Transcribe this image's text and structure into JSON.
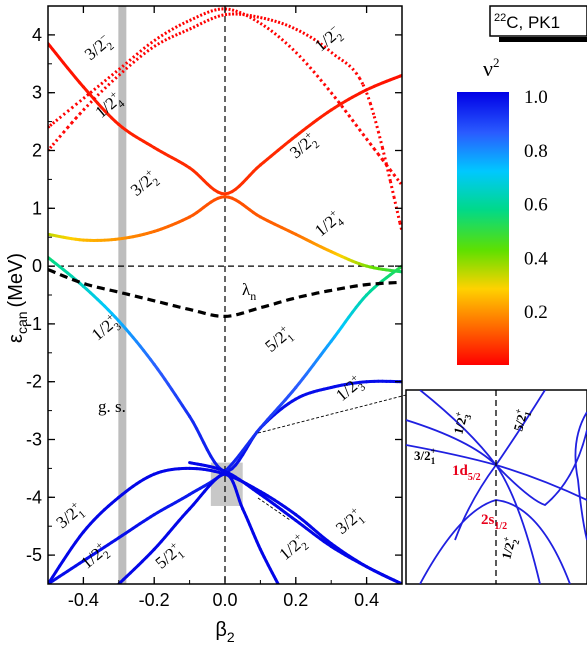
{
  "chart_data": {
    "type": "line",
    "tag": "22C, PK1",
    "tag_sup": "22",
    "tag_rest": "C, PK1",
    "xlabel": "β",
    "xlabel_sub": "2",
    "ylabel": "ε",
    "ylabel_sub": "can",
    "ylabel_unit": "(MeV)",
    "xlim": [
      -0.5,
      0.5
    ],
    "ylim": [
      -5.5,
      4.5
    ],
    "xticks": [
      -0.4,
      -0.2,
      0.0,
      0.2,
      0.4
    ],
    "xtick_labels": [
      "-0.4",
      "-0.2",
      "0.0",
      "0.2",
      "0.4"
    ],
    "yticks": [
      -5,
      -4,
      -3,
      -2,
      -1,
      0,
      1,
      2,
      3,
      4
    ],
    "ytick_labels": [
      "-5",
      "-4",
      "-3",
      "-2",
      "-1",
      "0",
      "1",
      "2",
      "3",
      "4"
    ],
    "gs_label": "g. s.",
    "gs_beta": -0.29,
    "fermi_label": "λ",
    "fermi_sub": "n",
    "colorbar": {
      "title": "ν",
      "title_sup": "2",
      "ticks": [
        1.0,
        0.8,
        0.6,
        0.4,
        0.2
      ],
      "tick_labels": [
        "1.0",
        "0.8",
        "0.6",
        "0.4",
        "0.2"
      ],
      "colors": [
        "#ff0000",
        "#ff6a00",
        "#ffd200",
        "#5fe000",
        "#00d98a",
        "#00c8ff",
        "#2a5cff",
        "#0000e6"
      ]
    },
    "fermi_level": {
      "x": [
        -0.5,
        -0.4,
        -0.3,
        -0.2,
        -0.1,
        0.0,
        0.1,
        0.2,
        0.3,
        0.4,
        0.5
      ],
      "y": [
        -0.06,
        -0.3,
        -0.45,
        -0.6,
        -0.75,
        -0.87,
        -0.72,
        -0.55,
        -0.42,
        -0.32,
        -0.28
      ]
    },
    "series": [
      {
        "name": "1/2+ (upper)",
        "x": [
          -0.5,
          -0.4,
          -0.3,
          -0.2,
          -0.1,
          0.0,
          0.1,
          0.2,
          0.3,
          0.4,
          0.5
        ],
        "y": [
          3.85,
          3.1,
          2.45,
          2.05,
          1.7,
          1.25,
          1.75,
          2.25,
          2.7,
          3.05,
          3.3
        ],
        "v2": [
          0.02,
          0.03,
          0.04,
          0.05,
          0.06,
          0.07,
          0.06,
          0.05,
          0.04,
          0.03,
          0.02
        ]
      },
      {
        "name": "3/2+ (middle)",
        "x": [
          -0.5,
          -0.4,
          -0.3,
          -0.2,
          -0.1,
          0.0,
          0.1,
          0.2,
          0.3,
          0.4,
          0.5
        ],
        "y": [
          0.55,
          0.45,
          0.47,
          0.6,
          0.85,
          1.2,
          0.85,
          0.55,
          0.25,
          0.0,
          -0.1
        ],
        "v2": [
          0.35,
          0.25,
          0.2,
          0.15,
          0.12,
          0.1,
          0.12,
          0.15,
          0.25,
          0.4,
          0.55
        ]
      },
      {
        "name": "3/2- (dotted)",
        "x": [
          -0.5,
          -0.4,
          -0.3,
          -0.2,
          -0.1,
          0.0,
          0.1,
          0.2,
          0.3,
          0.4,
          0.5
        ],
        "y": [
          2.0,
          2.7,
          3.3,
          3.8,
          4.1,
          4.35,
          4.3,
          4.1,
          3.7,
          3.0,
          0.6
        ],
        "v2": [
          0.0,
          0.0,
          0.0,
          0.0,
          0.0,
          0.0,
          0.0,
          0.0,
          0.0,
          0.0,
          0.0
        ]
      },
      {
        "name": "1/2- (dotted)",
        "x": [
          -0.5,
          -0.4,
          -0.3,
          -0.2,
          -0.1,
          0.0,
          0.1,
          0.2,
          0.3,
          0.4,
          0.5
        ],
        "y": [
          2.4,
          2.9,
          3.4,
          3.9,
          4.25,
          4.45,
          4.2,
          3.7,
          3.0,
          2.2,
          1.4
        ],
        "v2": [
          0.0,
          0.0,
          0.0,
          0.0,
          0.0,
          0.0,
          0.0,
          0.0,
          0.0,
          0.0,
          0.0
        ]
      },
      {
        "name": "1/2+ (lower)",
        "x": [
          -0.5,
          -0.4,
          -0.3,
          -0.2,
          -0.1,
          0.0,
          0.1,
          0.2,
          0.3,
          0.4,
          0.5
        ],
        "y": [
          0.15,
          -0.35,
          -0.95,
          -1.7,
          -2.6,
          -3.55,
          -2.8,
          -2.3,
          -2.1,
          -2.0,
          -2.0
        ],
        "v2": [
          0.55,
          0.65,
          0.75,
          0.85,
          0.93,
          0.97,
          0.98,
          0.98,
          0.98,
          0.98,
          0.98
        ]
      },
      {
        "name": "5/2+ (rising)",
        "x": [
          -0.5,
          -0.4,
          -0.3,
          -0.2,
          -0.1,
          0.0,
          0.1,
          0.2,
          0.3,
          0.4,
          0.5
        ],
        "y": [
          -5.5,
          -5.1,
          -4.7,
          -4.3,
          -3.95,
          -3.55,
          -2.8,
          -2.1,
          -1.3,
          -0.5,
          0.0
        ],
        "v2": [
          0.98,
          0.98,
          0.98,
          0.97,
          0.96,
          0.95,
          0.92,
          0.86,
          0.75,
          0.6,
          0.5
        ]
      },
      {
        "name": "3/2+ (parabola)",
        "x": [
          -0.5,
          -0.4,
          -0.3,
          -0.2,
          -0.1,
          0.0,
          0.1,
          0.2,
          0.3,
          0.4,
          0.5
        ],
        "y": [
          -5.5,
          -4.6,
          -4.0,
          -3.6,
          -3.5,
          -3.6,
          -3.9,
          -4.3,
          -4.8,
          -5.2,
          -5.5
        ],
        "v2": [
          0.99,
          0.99,
          0.99,
          0.99,
          0.99,
          0.99,
          0.99,
          0.99,
          0.99,
          0.99,
          0.99
        ]
      },
      {
        "name": "1/2+ (steep)",
        "x": [
          -0.3,
          -0.2,
          -0.1,
          0.0,
          0.05,
          0.1,
          0.15
        ],
        "y": [
          -5.5,
          -4.9,
          -4.2,
          -3.6,
          -4.2,
          -4.9,
          -5.5
        ],
        "v2": [
          0.99,
          0.99,
          0.99,
          0.99,
          0.99,
          0.99,
          0.99
        ]
      },
      {
        "name": "3/2+ (lower right)",
        "x": [
          -0.1,
          0.0,
          0.1,
          0.2,
          0.3,
          0.4,
          0.5
        ],
        "y": [
          -3.4,
          -3.55,
          -3.95,
          -4.4,
          -4.85,
          -5.2,
          -5.5
        ],
        "v2": [
          0.99,
          0.99,
          0.99,
          0.99,
          0.99,
          0.99,
          0.99
        ]
      }
    ],
    "level_labels": [
      {
        "text": "3/2",
        "sup": "−",
        "sub": "2",
        "x": -0.38,
        "y": 3.55
      },
      {
        "text": "1/2",
        "sup": "−",
        "sub": "2",
        "x": 0.27,
        "y": 3.7
      },
      {
        "text": "1/2",
        "sup": "+",
        "sub": "4",
        "x": -0.35,
        "y": 2.55
      },
      {
        "text": "3/2",
        "sup": "+",
        "sub": "2",
        "x": 0.2,
        "y": 1.85
      },
      {
        "text": "3/2",
        "sup": "+",
        "sub": "2",
        "x": -0.25,
        "y": 1.2
      },
      {
        "text": "1/2",
        "sup": "+",
        "sub": "4",
        "x": 0.27,
        "y": 0.5
      },
      {
        "text": "1/2",
        "sup": "+",
        "sub": "3",
        "x": -0.36,
        "y": -1.3
      },
      {
        "text": "5/2",
        "sup": "+",
        "sub": "1",
        "x": 0.13,
        "y": -1.5
      },
      {
        "text": "1/2",
        "sup": "+",
        "sub": "3",
        "x": 0.33,
        "y": -2.35
      },
      {
        "text": "3/2",
        "sup": "+",
        "sub": "1",
        "x": -0.46,
        "y": -4.55
      },
      {
        "text": "1/2",
        "sup": "+",
        "sub": "2",
        "x": -0.39,
        "y": -5.25
      },
      {
        "text": "5/2",
        "sup": "+",
        "sub": "1",
        "x": -0.18,
        "y": -5.25
      },
      {
        "text": "3/2",
        "sup": "+",
        "sub": "1",
        "x": 0.33,
        "y": -4.65
      },
      {
        "text": "1/2",
        "sup": "+",
        "sub": "2",
        "x": 0.17,
        "y": -5.1
      }
    ],
    "inset": {
      "labels": [
        {
          "text": "1/2",
          "sup": "+",
          "sub": "3",
          "style": "normal"
        },
        {
          "text": "5/2",
          "sup": "+",
          "sub": "1",
          "style": "normal"
        },
        {
          "text": "3/2",
          "sup": "+",
          "sub": "1",
          "style": "normal"
        },
        {
          "text": "1/2",
          "sup": "+",
          "sub": "2",
          "style": "normal"
        }
      ],
      "orbital_1": {
        "main": "1d",
        "sub": "5/2"
      },
      "orbital_2": {
        "main": "2s",
        "sub": "1/2"
      },
      "accent": "#e8001b"
    }
  }
}
